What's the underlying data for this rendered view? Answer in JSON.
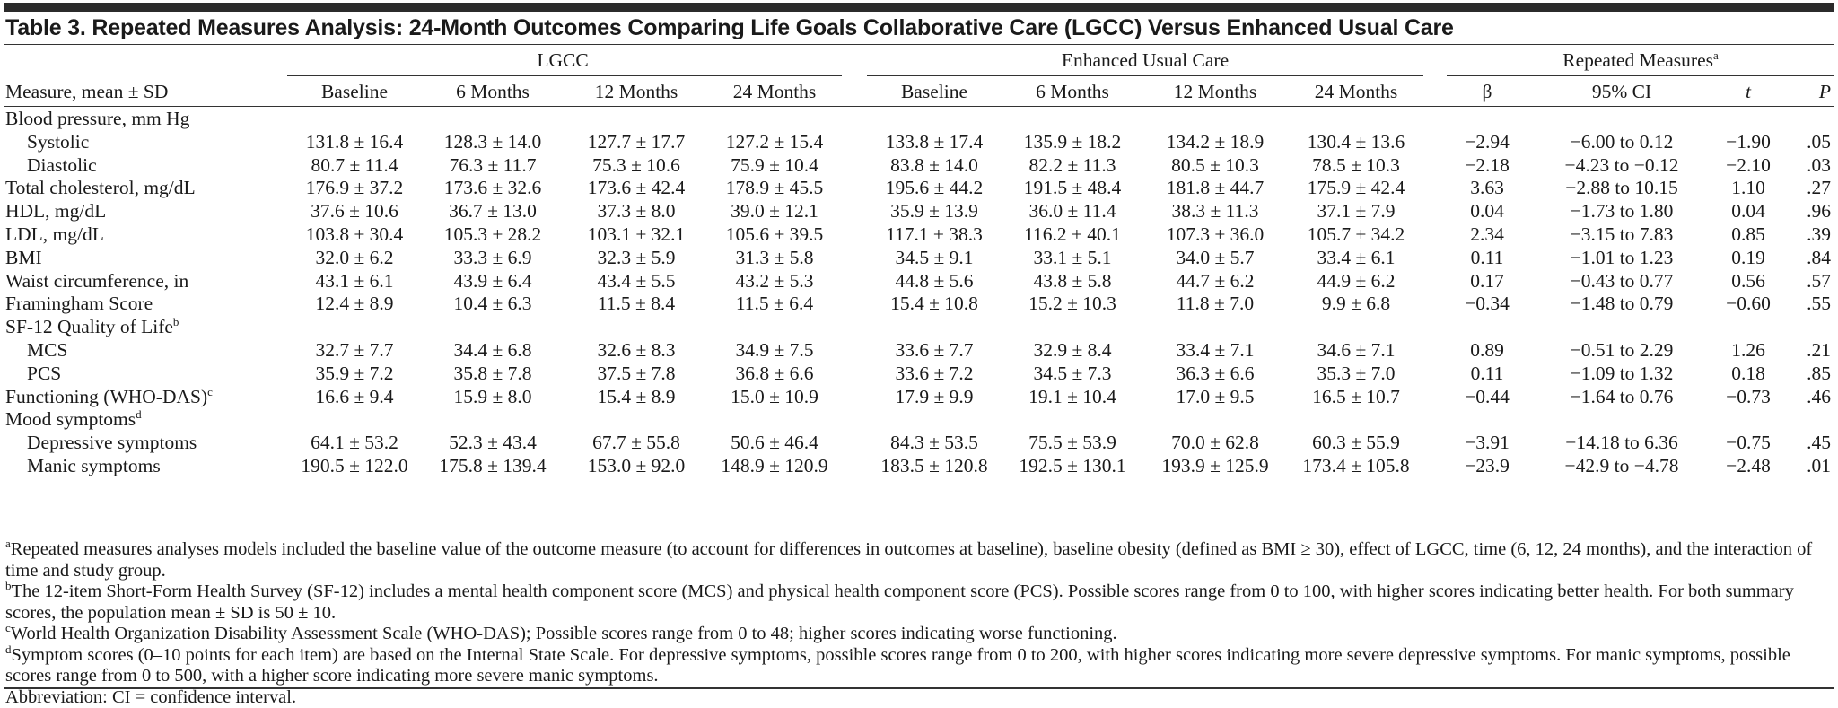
{
  "title": "Table 3. Repeated Measures Analysis: 24-Month Outcomes Comparing Life Goals Collaborative Care (LGCC) Versus Enhanced Usual Care",
  "groups": {
    "lgcc": "LGCC",
    "euc": "Enhanced Usual Care",
    "rm": "Repeated Measures",
    "rm_sup": "a"
  },
  "columns": {
    "measure": "Measure, mean ± SD",
    "lgcc": [
      "Baseline",
      "6 Months",
      "12 Months",
      "24 Months"
    ],
    "euc": [
      "Baseline",
      "6 Months",
      "12 Months",
      "24 Months"
    ],
    "rm": [
      "β",
      "95% CI",
      "t",
      "P"
    ]
  },
  "rows": [
    {
      "label": "Blood pressure, mm Hg",
      "sup": "",
      "indent": false,
      "lgcc": [
        "",
        "",
        "",
        ""
      ],
      "euc": [
        "",
        "",
        "",
        ""
      ],
      "rm": [
        "",
        "",
        "",
        ""
      ]
    },
    {
      "label": "Systolic",
      "sup": "",
      "indent": true,
      "lgcc": [
        "131.8 ± 16.4",
        "128.3 ± 14.0",
        "127.7 ± 17.7",
        "127.2 ± 15.4"
      ],
      "euc": [
        "133.8 ± 17.4",
        "135.9 ± 18.2",
        "134.2 ± 18.9",
        "130.4 ± 13.6"
      ],
      "rm": [
        "−2.94",
        "−6.00 to 0.12",
        "−1.90",
        ".05"
      ]
    },
    {
      "label": "Diastolic",
      "sup": "",
      "indent": true,
      "lgcc": [
        "80.7 ± 11.4",
        "76.3 ± 11.7",
        "75.3 ± 10.6",
        "75.9 ± 10.4"
      ],
      "euc": [
        "83.8 ± 14.0",
        "82.2 ± 11.3",
        "80.5 ± 10.3",
        "78.5 ± 10.3"
      ],
      "rm": [
        "−2.18",
        "−4.23 to −0.12",
        "−2.10",
        ".03"
      ]
    },
    {
      "label": "Total cholesterol, mg/dL",
      "sup": "",
      "indent": false,
      "lgcc": [
        "176.9 ± 37.2",
        "173.6 ± 32.6",
        "173.6 ± 42.4",
        "178.9 ± 45.5"
      ],
      "euc": [
        "195.6 ± 44.2",
        "191.5 ± 48.4",
        "181.8 ± 44.7",
        "175.9 ± 42.4"
      ],
      "rm": [
        "3.63",
        "−2.88 to 10.15",
        "1.10",
        ".27"
      ]
    },
    {
      "label": "HDL, mg/dL",
      "sup": "",
      "indent": false,
      "lgcc": [
        "37.6 ± 10.6",
        "36.7 ± 13.0",
        "37.3 ± 8.0",
        "39.0 ± 12.1"
      ],
      "euc": [
        "35.9 ± 13.9",
        "36.0 ± 11.4",
        "38.3 ± 11.3",
        "37.1 ± 7.9"
      ],
      "rm": [
        "0.04",
        "−1.73 to 1.80",
        "0.04",
        ".96"
      ]
    },
    {
      "label": "LDL, mg/dL",
      "sup": "",
      "indent": false,
      "lgcc": [
        "103.8 ± 30.4",
        "105.3 ± 28.2",
        "103.1 ± 32.1",
        "105.6 ± 39.5"
      ],
      "euc": [
        "117.1 ± 38.3",
        "116.2 ± 40.1",
        "107.3 ± 36.0",
        "105.7 ± 34.2"
      ],
      "rm": [
        "2.34",
        "−3.15 to 7.83",
        "0.85",
        ".39"
      ]
    },
    {
      "label": "BMI",
      "sup": "",
      "indent": false,
      "lgcc": [
        "32.0 ± 6.2",
        "33.3 ± 6.9",
        "32.3 ± 5.9",
        "31.3 ± 5.8"
      ],
      "euc": [
        "34.5 ± 9.1",
        "33.1 ± 5.1",
        "34.0 ± 5.7",
        "33.4 ± 6.1"
      ],
      "rm": [
        "0.11",
        "−1.01 to 1.23",
        "0.19",
        ".84"
      ]
    },
    {
      "label": "Waist circumference, in",
      "sup": "",
      "indent": false,
      "lgcc": [
        "43.1 ± 6.1",
        "43.9 ± 6.4",
        "43.4 ± 5.5",
        "43.2 ± 5.3"
      ],
      "euc": [
        "44.8 ± 5.6",
        "43.8 ± 5.8",
        "44.7 ± 6.2",
        "44.9 ± 6.2"
      ],
      "rm": [
        "0.17",
        "−0.43 to 0.77",
        "0.56",
        ".57"
      ]
    },
    {
      "label": "Framingham Score",
      "sup": "",
      "indent": false,
      "lgcc": [
        "12.4 ± 8.9",
        "10.4 ± 6.3",
        "11.5 ± 8.4",
        "11.5 ± 6.4"
      ],
      "euc": [
        "15.4 ± 10.8",
        "15.2 ± 10.3",
        "11.8 ± 7.0",
        "9.9 ± 6.8"
      ],
      "rm": [
        "−0.34",
        "−1.48 to 0.79",
        "−0.60",
        ".55"
      ]
    },
    {
      "label": "SF-12 Quality of Life",
      "sup": "b",
      "indent": false,
      "lgcc": [
        "",
        "",
        "",
        ""
      ],
      "euc": [
        "",
        "",
        "",
        ""
      ],
      "rm": [
        "",
        "",
        "",
        ""
      ]
    },
    {
      "label": "MCS",
      "sup": "",
      "indent": true,
      "lgcc": [
        "32.7 ± 7.7",
        "34.4 ± 6.8",
        "32.6 ± 8.3",
        "34.9 ± 7.5"
      ],
      "euc": [
        "33.6 ± 7.7",
        "32.9 ± 8.4",
        "33.4 ± 7.1",
        "34.6 ± 7.1"
      ],
      "rm": [
        "0.89",
        "−0.51 to 2.29",
        "1.26",
        ".21"
      ]
    },
    {
      "label": "PCS",
      "sup": "",
      "indent": true,
      "lgcc": [
        "35.9 ± 7.2",
        "35.8 ± 7.8",
        "37.5 ± 7.8",
        "36.8 ± 6.6"
      ],
      "euc": [
        "33.6 ± 7.2",
        "34.5 ± 7.3",
        "36.3 ± 6.6",
        "35.3 ± 7.0"
      ],
      "rm": [
        "0.11",
        "−1.09 to 1.32",
        "0.18",
        ".85"
      ]
    },
    {
      "label": "Functioning (WHO-DAS)",
      "sup": "c",
      "indent": false,
      "lgcc": [
        "16.6 ± 9.4",
        "15.9 ± 8.0",
        "15.4 ± 8.9",
        "15.0 ± 10.9"
      ],
      "euc": [
        "17.9 ± 9.9",
        "19.1 ± 10.4",
        "17.0 ± 9.5",
        "16.5 ± 10.7"
      ],
      "rm": [
        "−0.44",
        "−1.64 to 0.76",
        "−0.73",
        ".46"
      ]
    },
    {
      "label": "Mood symptoms",
      "sup": "d",
      "indent": false,
      "lgcc": [
        "",
        "",
        "",
        ""
      ],
      "euc": [
        "",
        "",
        "",
        ""
      ],
      "rm": [
        "",
        "",
        "",
        ""
      ]
    },
    {
      "label": "Depressive symptoms",
      "sup": "",
      "indent": true,
      "lgcc": [
        "64.1 ± 53.2",
        "52.3 ± 43.4",
        "67.7 ± 55.8",
        "50.6 ± 46.4"
      ],
      "euc": [
        "84.3 ± 53.5",
        "75.5 ± 53.9",
        "70.0 ± 62.8",
        "60.3 ± 55.9"
      ],
      "rm": [
        "−3.91",
        "−14.18 to 6.36",
        "−0.75",
        ".45"
      ]
    },
    {
      "label": "Manic symptoms",
      "sup": "",
      "indent": true,
      "lgcc": [
        "190.5 ± 122.0",
        "175.8 ± 139.4",
        "153.0 ± 92.0",
        "148.9 ± 120.9"
      ],
      "euc": [
        "183.5 ± 120.8",
        "192.5 ± 130.1",
        "193.9 ± 125.9",
        "173.4 ± 105.8"
      ],
      "rm": [
        "−23.9",
        "−42.9 to −4.78",
        "−2.48",
        ".01"
      ]
    }
  ],
  "footnotes": [
    {
      "mark": "a",
      "text": "Repeated measures analyses models included the baseline value of the outcome measure (to account for differences in outcomes at baseline), baseline obesity (defined as BMI ≥ 30), effect of LGCC, time (6, 12, 24 months), and the interaction of time and study group."
    },
    {
      "mark": "b",
      "text": "The 12-item Short-Form Health Survey (SF-12) includes a mental health component score (MCS) and physical health component score (PCS). Possible scores range from 0 to 100, with higher scores indicating better health. For both summary scores, the population mean ± SD is 50 ± 10."
    },
    {
      "mark": "c",
      "text": "World Health Organization Disability Assessment Scale (WHO-DAS); Possible scores range from 0 to 48; higher scores indicating worse functioning."
    },
    {
      "mark": "d",
      "text": "Symptom scores (0–10 points for each item) are based on the Internal State Scale. For depressive symptoms, possible scores range from 0 to 200, with higher scores indicating more severe depressive symptoms. For manic symptoms, possible scores range from 0 to 500, with a higher score indicating more severe manic symptoms."
    },
    {
      "mark": "",
      "text": "Abbreviation: CI = confidence interval."
    }
  ]
}
